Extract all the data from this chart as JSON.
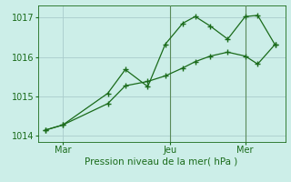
{
  "title": "Pression niveau de la mer( hPa )",
  "background_color": "#cceee8",
  "grid_color": "#aacccc",
  "line_color": "#1a6b1a",
  "vline_color": "#5a8a5a",
  "line1_x": [
    0.0,
    0.7,
    2.5,
    3.2,
    4.1,
    4.8,
    5.5,
    6.0,
    6.6,
    7.3,
    8.0,
    8.5,
    9.2
  ],
  "line1_y": [
    1014.15,
    1014.28,
    1015.08,
    1015.68,
    1015.25,
    1016.32,
    1016.85,
    1017.02,
    1016.78,
    1016.45,
    1017.02,
    1017.05,
    1016.3
  ],
  "line2_x": [
    0.0,
    0.7,
    2.5,
    3.2,
    4.1,
    4.8,
    5.5,
    6.0,
    6.6,
    7.3,
    8.0,
    8.5,
    9.2
  ],
  "line2_y": [
    1014.15,
    1014.28,
    1014.82,
    1015.27,
    1015.38,
    1015.52,
    1015.72,
    1015.88,
    1016.02,
    1016.12,
    1016.02,
    1015.82,
    1016.32
  ],
  "xtick_positions": [
    0.7,
    5.0,
    8.0
  ],
  "xtick_labels": [
    "Mar",
    "Jeu",
    "Mer"
  ],
  "vline1_x": 5.0,
  "vline2_x": 8.0,
  "ylim": [
    1013.85,
    1017.3
  ],
  "yticks": [
    1014,
    1015,
    1016,
    1017
  ],
  "xlim": [
    -0.3,
    9.6
  ],
  "xlabel_fontsize": 7.5,
  "tick_fontsize": 7
}
